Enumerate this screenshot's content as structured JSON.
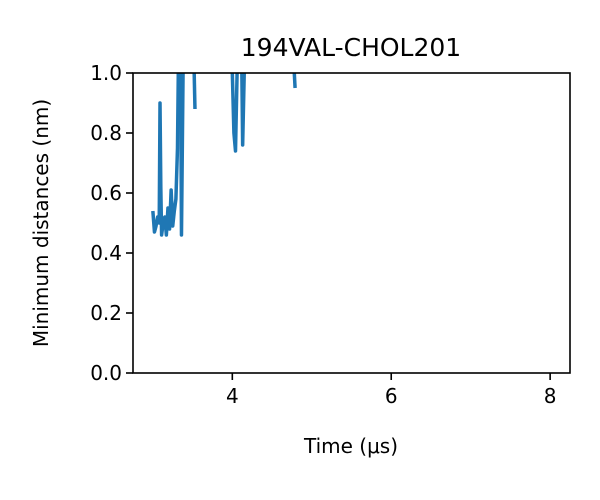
{
  "chart_data": {
    "type": "line",
    "title": "194VAL-CHOL201",
    "xlabel": "Time (μs)",
    "ylabel": "Minimum distances (nm)",
    "xlim": [
      2.75,
      8.25
    ],
    "ylim": [
      0.0,
      1.0
    ],
    "xticks": [
      4,
      6,
      8
    ],
    "xtick_labels": [
      "4",
      "6",
      "8"
    ],
    "yticks": [
      0.0,
      0.2,
      0.4,
      0.6,
      0.8,
      1.0
    ],
    "ytick_labels": [
      "0.0",
      "0.2",
      "0.4",
      "0.6",
      "0.8",
      "1.0"
    ],
    "grid": false,
    "colors": {
      "series": "#1f77b4",
      "axes": "#000000",
      "background": "#ffffff"
    },
    "series": [
      {
        "segments": [
          [
            [
              3.0,
              0.54
            ],
            [
              3.02,
              0.47
            ],
            [
              3.04,
              0.49
            ],
            [
              3.06,
              0.52
            ],
            [
              3.08,
              0.5
            ],
            [
              3.09,
              0.9
            ],
            [
              3.1,
              0.62
            ],
            [
              3.11,
              0.46
            ],
            [
              3.13,
              0.5
            ],
            [
              3.15,
              0.52
            ],
            [
              3.17,
              0.46
            ],
            [
              3.19,
              0.55
            ],
            [
              3.21,
              0.48
            ],
            [
              3.23,
              0.61
            ],
            [
              3.25,
              0.49
            ],
            [
              3.27,
              0.54
            ],
            [
              3.29,
              0.58
            ],
            [
              3.31,
              0.75
            ],
            [
              3.32,
              1.0
            ]
          ],
          [
            [
              3.35,
              1.0
            ],
            [
              3.36,
              0.46
            ],
            [
              3.38,
              1.0
            ]
          ],
          [
            [
              3.52,
              1.0
            ],
            [
              3.53,
              0.88
            ]
          ],
          [
            [
              4.0,
              1.0
            ],
            [
              4.02,
              0.8
            ],
            [
              4.04,
              0.74
            ],
            [
              4.06,
              1.0
            ]
          ],
          [
            [
              4.12,
              1.0
            ],
            [
              4.13,
              0.76
            ],
            [
              4.15,
              1.0
            ]
          ],
          [
            [
              4.78,
              1.0
            ],
            [
              4.79,
              0.95
            ]
          ]
        ]
      }
    ]
  }
}
